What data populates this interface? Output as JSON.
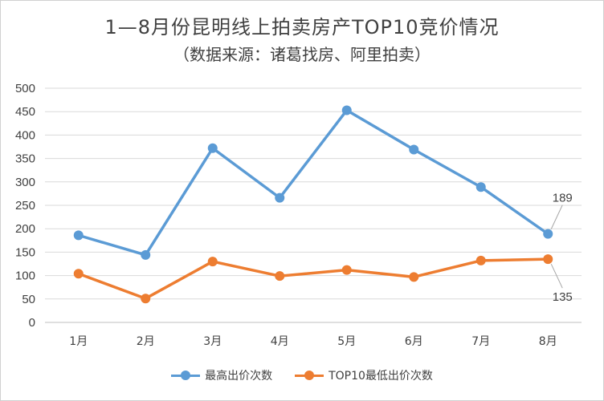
{
  "chart_data": {
    "type": "line",
    "title": "1—8月份昆明线上拍卖房产TOP10竞价情况",
    "subtitle": "（数据来源：诸葛找房、阿里拍卖）",
    "categories": [
      "1月",
      "2月",
      "3月",
      "4月",
      "5月",
      "6月",
      "7月",
      "8月"
    ],
    "ylim": [
      0,
      500
    ],
    "yticks": [
      "0",
      "50",
      "100",
      "150",
      "200",
      "250",
      "300",
      "350",
      "400",
      "450",
      "500"
    ],
    "grid": true,
    "legend_position": "bottom",
    "series": [
      {
        "name": "最高出价次数",
        "color": "#5B9BD5",
        "values": [
          186,
          144,
          372,
          266,
          453,
          369,
          289,
          189
        ]
      },
      {
        "name": "TOP10最低出价次数",
        "color": "#ED7D31",
        "values": [
          104,
          51,
          130,
          99,
          112,
          97,
          132,
          135
        ]
      }
    ],
    "data_labels": [
      {
        "series": 0,
        "index": 7,
        "text": "189"
      },
      {
        "series": 1,
        "index": 7,
        "text": "135"
      }
    ]
  }
}
